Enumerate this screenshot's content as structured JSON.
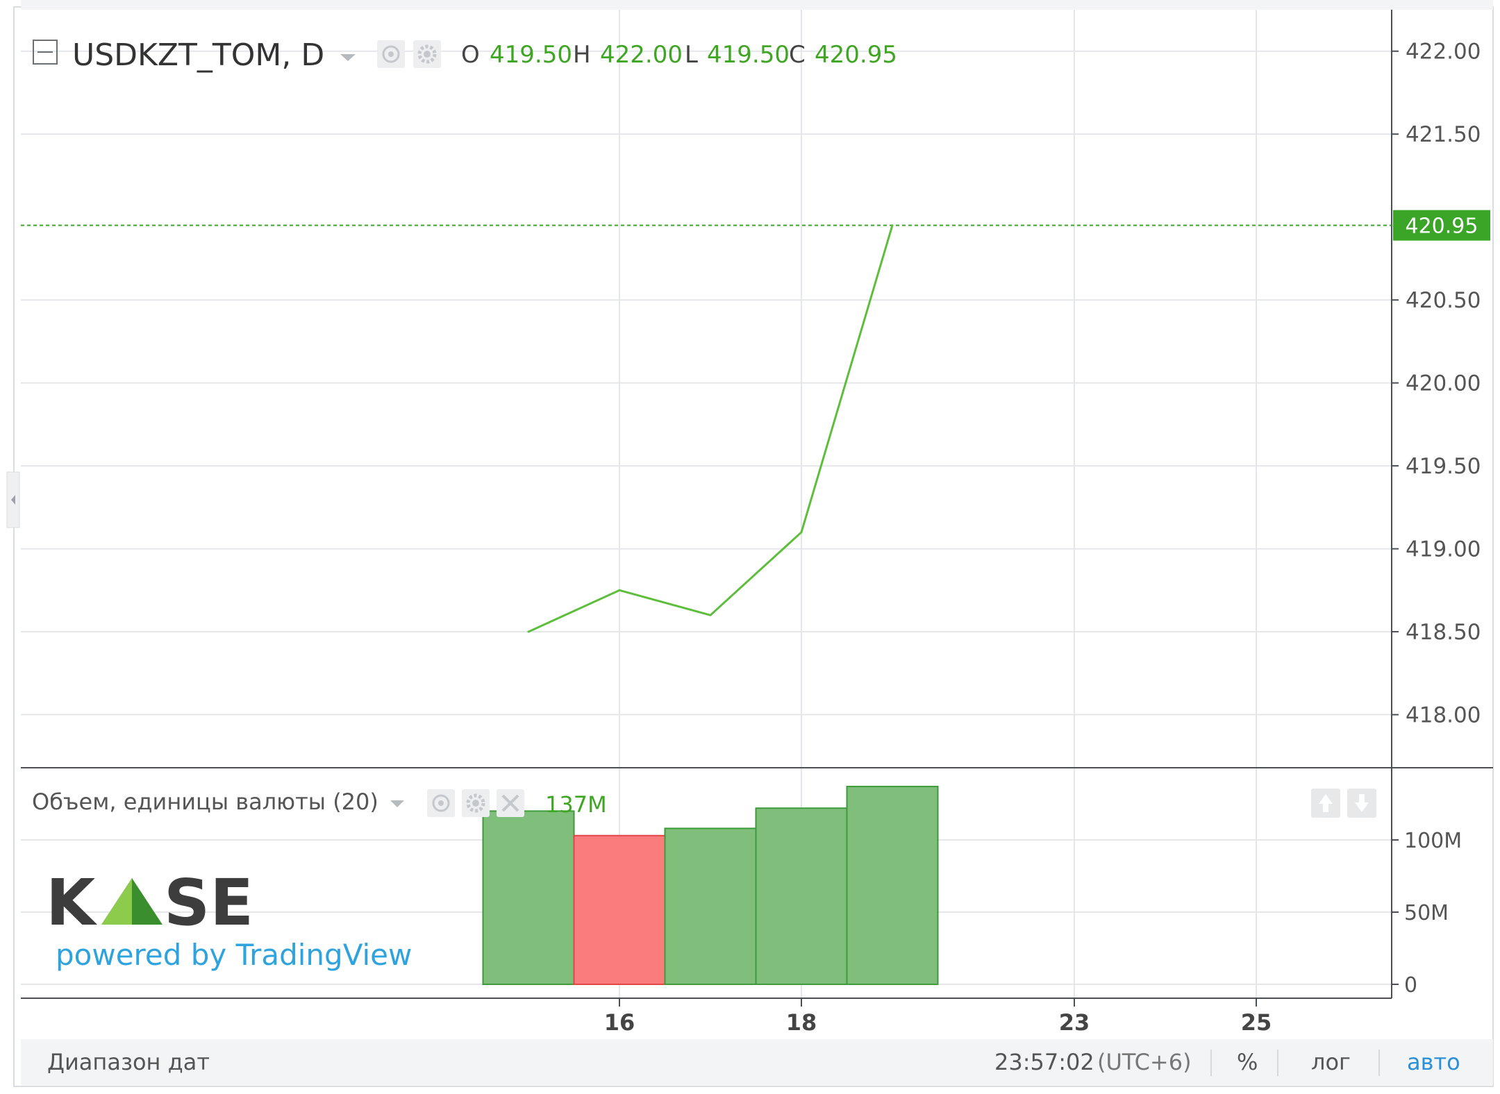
{
  "legend": {
    "symbol": "USDKZT_TOM, D",
    "open_label": "O",
    "open": "419.50",
    "high_label": "H",
    "high": "422.00",
    "low_label": "L",
    "low": "419.50",
    "close_label": "C",
    "close": "420.95"
  },
  "volume_legend": {
    "title": "Объем, единицы валюты (20)",
    "value": "137M"
  },
  "watermark": {
    "logo_text": "KASE",
    "powered_by": "powered by TradingView"
  },
  "bottom_bar": {
    "date_range": "Диапазон дат",
    "time": "23:57:02",
    "timezone": "(UTC+6)",
    "percent": "%",
    "log": "лог",
    "auto": "авто"
  },
  "chart_data": [
    {
      "type": "line",
      "title": "USDKZT_TOM, D",
      "x": [
        15,
        16,
        17,
        18,
        19
      ],
      "values": [
        418.5,
        418.75,
        418.6,
        419.1,
        420.95
      ],
      "ylim": [
        417.68,
        422.25
      ],
      "y_ticks": [
        "422.00",
        "421.50",
        "420.95",
        "420.50",
        "420.00",
        "419.50",
        "419.00",
        "418.50",
        "418.00"
      ],
      "y_tick_values": [
        422.0,
        421.5,
        420.5,
        420.0,
        419.5,
        419.0,
        418.5,
        418.0
      ],
      "last_price": 420.95,
      "last_price_label": "420.95",
      "x_ticks": [
        "16",
        "18",
        "23",
        "25"
      ],
      "x_tick_positions": [
        16,
        18,
        21,
        23
      ],
      "grid": true,
      "colors": {
        "line": "#5dbe3b",
        "last_price": "#3ba528"
      }
    },
    {
      "type": "bar",
      "title": "Объем, единицы валюты (20)",
      "categories": [
        "15",
        "16",
        "17",
        "18",
        "19"
      ],
      "values": [
        120,
        103,
        108,
        122,
        137
      ],
      "direction": [
        "up",
        "down",
        "up",
        "up",
        "up"
      ],
      "unit": "M",
      "ylim": [
        0,
        150
      ],
      "y_ticks": [
        "100M",
        "50M",
        "0"
      ],
      "y_tick_values": [
        100,
        50,
        0
      ],
      "colors": {
        "up": "#7fbf7b",
        "up_border": "#3f9a3b",
        "down": "#fb7c7c",
        "down_border": "#e34545"
      }
    }
  ]
}
